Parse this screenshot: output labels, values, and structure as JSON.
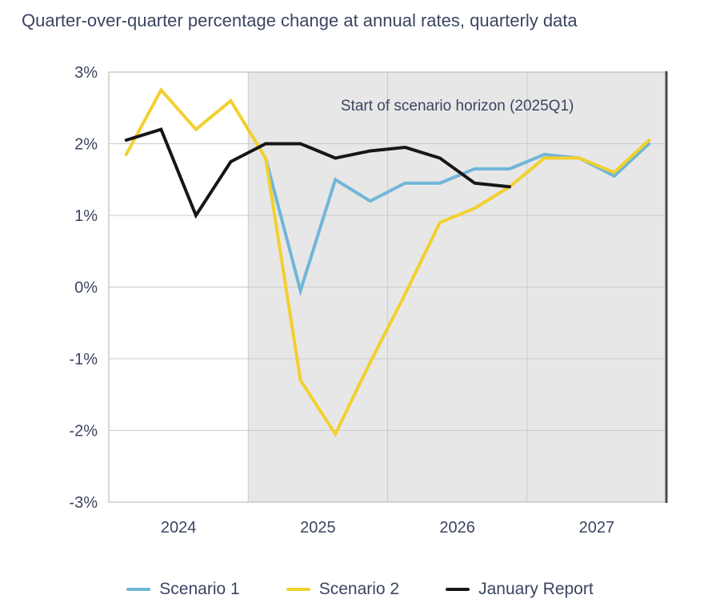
{
  "title": "Quarter-over-quarter percentage change at annual rates, quarterly data",
  "chart_data": {
    "type": "line",
    "x_quarters": [
      "2024Q1",
      "2024Q2",
      "2024Q3",
      "2024Q4",
      "2025Q1",
      "2025Q2",
      "2025Q3",
      "2025Q4",
      "2026Q1",
      "2026Q2",
      "2026Q3",
      "2026Q4",
      "2027Q1",
      "2027Q2",
      "2027Q3",
      "2027Q4"
    ],
    "x_tick_labels": [
      "2024",
      "2025",
      "2026",
      "2027"
    ],
    "y_tick_labels": [
      "3%",
      "2%",
      "1%",
      "0%",
      "-1%",
      "-2%",
      "-3%"
    ],
    "y_tick_values": [
      3,
      2,
      1,
      0,
      -1,
      -2,
      -3
    ],
    "ylim": [
      -3,
      3
    ],
    "grid": true,
    "legend_position": "bottom",
    "annotation": "Start of scenario horizon (2025Q1)",
    "shaded_region": {
      "start_quarter": "2025Q1",
      "end_quarter": "2027Q4",
      "color": "#e7e7e7"
    },
    "series": [
      {
        "name": "Scenario 1",
        "color": "#70b6d8",
        "start_quarter": "2025Q1",
        "values": [
          1.8,
          -0.05,
          1.5,
          1.2,
          1.45,
          1.45,
          1.65,
          1.65,
          1.85,
          1.8,
          1.55,
          2.0
        ]
      },
      {
        "name": "Scenario 2",
        "color": "#f2d02e",
        "start_quarter": "2024Q1",
        "values": [
          1.85,
          2.75,
          2.2,
          2.6,
          1.8,
          -1.3,
          -2.05,
          -1.05,
          -0.1,
          0.9,
          1.1,
          1.4,
          1.8,
          1.8,
          1.6,
          2.05
        ]
      },
      {
        "name": "January Report",
        "color": "#161616",
        "start_quarter": "2024Q1",
        "values": [
          2.05,
          2.2,
          1.0,
          1.75,
          2.0,
          2.0,
          1.8,
          1.9,
          1.95,
          1.8,
          1.45,
          1.4
        ]
      }
    ]
  },
  "colors": {
    "text": "#3b4560",
    "grid": "#cbcbcb",
    "plot_border": "#b0b0b0",
    "right_edge": "#4a4a4a",
    "background": "#ffffff"
  }
}
